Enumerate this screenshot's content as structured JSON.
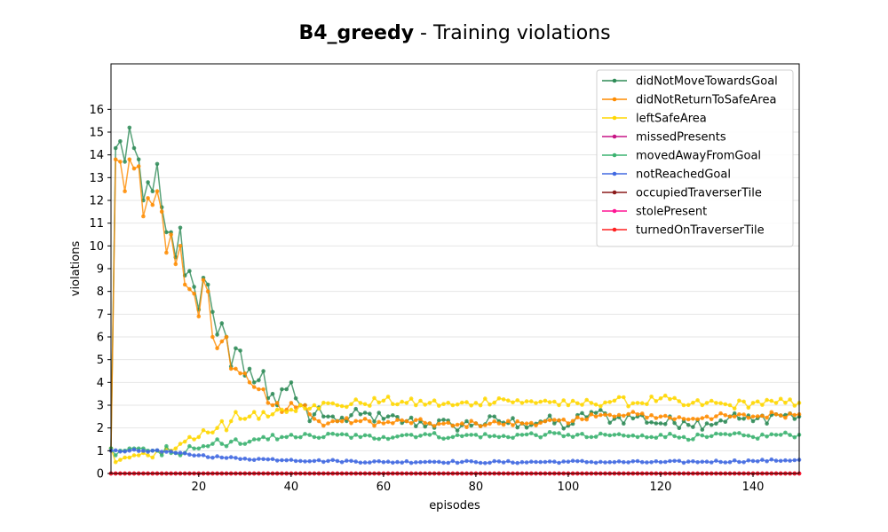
{
  "chart_data": {
    "type": "line",
    "title_bold": "B4_greedy",
    "title_rest": " - Training violations",
    "xlabel": "episodes",
    "ylabel": "violations",
    "xlim": [
      1,
      150
    ],
    "ylim": [
      0,
      18
    ],
    "xticks": [
      20,
      40,
      60,
      80,
      100,
      120,
      140
    ],
    "yticks": [
      0,
      1,
      2,
      3,
      4,
      5,
      6,
      7,
      8,
      9,
      10,
      11,
      12,
      13,
      14,
      15,
      16
    ],
    "grid": "horizontal",
    "legend_position": "top-right",
    "series": [
      {
        "name": "didNotMoveTowardsGoal",
        "color": "#2e8b57",
        "anchors": [
          [
            1,
            1.1
          ],
          [
            2,
            14.3
          ],
          [
            3,
            14.6
          ],
          [
            4,
            13.7
          ],
          [
            5,
            15.2
          ],
          [
            6,
            14.3
          ],
          [
            7,
            13.8
          ],
          [
            8,
            12.0
          ],
          [
            9,
            12.8
          ],
          [
            10,
            12.4
          ],
          [
            11,
            13.6
          ],
          [
            12,
            11.7
          ],
          [
            13,
            10.6
          ],
          [
            14,
            10.6
          ],
          [
            15,
            9.5
          ],
          [
            16,
            10.8
          ],
          [
            17,
            8.7
          ],
          [
            18,
            8.9
          ],
          [
            19,
            8.2
          ],
          [
            20,
            7.2
          ],
          [
            21,
            8.6
          ],
          [
            22,
            8.3
          ],
          [
            23,
            7.1
          ],
          [
            24,
            6.1
          ],
          [
            25,
            6.6
          ],
          [
            26,
            6.0
          ],
          [
            27,
            4.7
          ],
          [
            28,
            5.5
          ],
          [
            29,
            5.4
          ],
          [
            30,
            4.3
          ],
          [
            31,
            4.6
          ],
          [
            32,
            4.0
          ],
          [
            33,
            4.1
          ],
          [
            34,
            4.5
          ],
          [
            35,
            3.3
          ],
          [
            36,
            3.5
          ],
          [
            37,
            3.0
          ],
          [
            38,
            3.7
          ],
          [
            39,
            3.7
          ],
          [
            40,
            4.0
          ],
          [
            41,
            3.3
          ],
          [
            42,
            3.0
          ],
          [
            43,
            3.0
          ],
          [
            44,
            2.3
          ],
          [
            45,
            2.6
          ],
          [
            46,
            2.9
          ],
          [
            47,
            2.5
          ],
          [
            48,
            2.5
          ],
          [
            49,
            2.5
          ],
          [
            50,
            2.3
          ],
          [
            55,
            2.6
          ],
          [
            60,
            2.4
          ],
          [
            65,
            2.3
          ],
          [
            70,
            2.2
          ],
          [
            75,
            2.1
          ],
          [
            80,
            2.2
          ],
          [
            85,
            2.3
          ],
          [
            90,
            2.2
          ],
          [
            95,
            2.3
          ],
          [
            100,
            2.1
          ],
          [
            105,
            2.7
          ],
          [
            110,
            2.4
          ],
          [
            115,
            2.5
          ],
          [
            120,
            2.2
          ],
          [
            125,
            2.3
          ],
          [
            130,
            2.2
          ],
          [
            135,
            2.5
          ],
          [
            140,
            2.3
          ],
          [
            145,
            2.6
          ],
          [
            150,
            2.5
          ]
        ],
        "noise": 0.3
      },
      {
        "name": "didNotReturnToSafeArea",
        "color": "#ff8c00",
        "anchors": [
          [
            1,
            1.0
          ],
          [
            2,
            13.8
          ],
          [
            3,
            13.7
          ],
          [
            4,
            12.4
          ],
          [
            5,
            13.8
          ],
          [
            6,
            13.4
          ],
          [
            7,
            13.5
          ],
          [
            8,
            11.3
          ],
          [
            9,
            12.1
          ],
          [
            10,
            11.8
          ],
          [
            11,
            12.4
          ],
          [
            12,
            11.5
          ],
          [
            13,
            9.7
          ],
          [
            14,
            10.5
          ],
          [
            15,
            9.2
          ],
          [
            16,
            10.0
          ],
          [
            17,
            8.3
          ],
          [
            18,
            8.1
          ],
          [
            19,
            7.9
          ],
          [
            20,
            6.9
          ],
          [
            21,
            8.5
          ],
          [
            22,
            8.0
          ],
          [
            23,
            6.0
          ],
          [
            24,
            5.5
          ],
          [
            25,
            5.8
          ],
          [
            26,
            6.0
          ],
          [
            27,
            4.6
          ],
          [
            28,
            4.6
          ],
          [
            29,
            4.4
          ],
          [
            30,
            4.4
          ],
          [
            31,
            4.0
          ],
          [
            32,
            3.8
          ],
          [
            33,
            3.7
          ],
          [
            34,
            3.7
          ],
          [
            35,
            3.1
          ],
          [
            36,
            3.0
          ],
          [
            37,
            3.1
          ],
          [
            38,
            2.7
          ],
          [
            39,
            2.8
          ],
          [
            40,
            3.1
          ],
          [
            41,
            2.9
          ],
          [
            42,
            3.0
          ],
          [
            43,
            3.0
          ],
          [
            44,
            2.6
          ],
          [
            45,
            2.4
          ],
          [
            46,
            2.3
          ],
          [
            47,
            2.1
          ],
          [
            48,
            2.2
          ],
          [
            49,
            2.3
          ],
          [
            50,
            2.3
          ],
          [
            55,
            2.3
          ],
          [
            60,
            2.2
          ],
          [
            65,
            2.3
          ],
          [
            70,
            2.2
          ],
          [
            75,
            2.1
          ],
          [
            80,
            2.2
          ],
          [
            85,
            2.2
          ],
          [
            90,
            2.2
          ],
          [
            95,
            2.3
          ],
          [
            100,
            2.2
          ],
          [
            105,
            2.6
          ],
          [
            110,
            2.5
          ],
          [
            115,
            2.6
          ],
          [
            120,
            2.5
          ],
          [
            125,
            2.4
          ],
          [
            130,
            2.5
          ],
          [
            135,
            2.5
          ],
          [
            140,
            2.5
          ],
          [
            145,
            2.6
          ],
          [
            150,
            2.6
          ]
        ],
        "noise": 0.15
      },
      {
        "name": "leftSafeArea",
        "color": "#ffd700",
        "anchors": [
          [
            1,
            1.1
          ],
          [
            2,
            0.5
          ],
          [
            3,
            0.6
          ],
          [
            4,
            0.7
          ],
          [
            5,
            0.7
          ],
          [
            6,
            0.8
          ],
          [
            7,
            0.8
          ],
          [
            8,
            0.9
          ],
          [
            9,
            0.8
          ],
          [
            10,
            0.7
          ],
          [
            11,
            1.0
          ],
          [
            12,
            0.9
          ],
          [
            13,
            1.1
          ],
          [
            14,
            1.0
          ],
          [
            15,
            1.1
          ],
          [
            16,
            1.3
          ],
          [
            17,
            1.4
          ],
          [
            18,
            1.6
          ],
          [
            19,
            1.5
          ],
          [
            20,
            1.6
          ],
          [
            21,
            1.9
          ],
          [
            22,
            1.8
          ],
          [
            23,
            1.8
          ],
          [
            24,
            2.0
          ],
          [
            25,
            2.3
          ],
          [
            26,
            1.9
          ],
          [
            27,
            2.3
          ],
          [
            28,
            2.7
          ],
          [
            29,
            2.4
          ],
          [
            30,
            2.4
          ],
          [
            31,
            2.5
          ],
          [
            32,
            2.7
          ],
          [
            33,
            2.4
          ],
          [
            34,
            2.7
          ],
          [
            35,
            2.5
          ],
          [
            36,
            2.6
          ],
          [
            37,
            2.8
          ],
          [
            38,
            2.8
          ],
          [
            39,
            2.7
          ],
          [
            40,
            2.8
          ],
          [
            42,
            3.0
          ],
          [
            45,
            3.0
          ],
          [
            50,
            3.0
          ],
          [
            55,
            3.1
          ],
          [
            60,
            3.2
          ],
          [
            65,
            3.1
          ],
          [
            70,
            3.1
          ],
          [
            75,
            3.0
          ],
          [
            80,
            3.1
          ],
          [
            85,
            3.3
          ],
          [
            90,
            3.1
          ],
          [
            95,
            3.2
          ],
          [
            100,
            3.0
          ],
          [
            105,
            3.1
          ],
          [
            110,
            3.2
          ],
          [
            115,
            3.1
          ],
          [
            120,
            3.3
          ],
          [
            125,
            3.0
          ],
          [
            130,
            3.1
          ],
          [
            135,
            3.0
          ],
          [
            140,
            3.1
          ],
          [
            145,
            3.1
          ],
          [
            150,
            3.1
          ]
        ],
        "noise": 0.2
      },
      {
        "name": "missedPresents",
        "color": "#c71585",
        "anchors": [
          [
            1,
            0.0
          ],
          [
            150,
            0.0
          ]
        ],
        "noise": 0
      },
      {
        "name": "movedAwayFromGoal",
        "color": "#3cb371",
        "anchors": [
          [
            1,
            1.1
          ],
          [
            2,
            0.8
          ],
          [
            3,
            1.0
          ],
          [
            4,
            1.0
          ],
          [
            5,
            1.1
          ],
          [
            6,
            1.1
          ],
          [
            7,
            1.1
          ],
          [
            8,
            1.1
          ],
          [
            9,
            1.0
          ],
          [
            10,
            1.0
          ],
          [
            11,
            1.0
          ],
          [
            12,
            0.8
          ],
          [
            13,
            1.2
          ],
          [
            14,
            0.9
          ],
          [
            15,
            0.9
          ],
          [
            16,
            0.8
          ],
          [
            17,
            0.9
          ],
          [
            18,
            1.2
          ],
          [
            19,
            1.1
          ],
          [
            20,
            1.1
          ],
          [
            21,
            1.2
          ],
          [
            22,
            1.2
          ],
          [
            23,
            1.3
          ],
          [
            24,
            1.5
          ],
          [
            25,
            1.3
          ],
          [
            26,
            1.2
          ],
          [
            27,
            1.4
          ],
          [
            28,
            1.5
          ],
          [
            29,
            1.3
          ],
          [
            30,
            1.3
          ],
          [
            31,
            1.4
          ],
          [
            32,
            1.5
          ],
          [
            33,
            1.5
          ],
          [
            34,
            1.6
          ],
          [
            35,
            1.5
          ],
          [
            36,
            1.7
          ],
          [
            37,
            1.5
          ],
          [
            38,
            1.6
          ],
          [
            39,
            1.6
          ],
          [
            40,
            1.7
          ],
          [
            45,
            1.6
          ],
          [
            50,
            1.7
          ],
          [
            55,
            1.6
          ],
          [
            60,
            1.6
          ],
          [
            65,
            1.7
          ],
          [
            70,
            1.7
          ],
          [
            75,
            1.6
          ],
          [
            80,
            1.7
          ],
          [
            85,
            1.6
          ],
          [
            90,
            1.7
          ],
          [
            95,
            1.7
          ],
          [
            100,
            1.7
          ],
          [
            105,
            1.6
          ],
          [
            110,
            1.7
          ],
          [
            115,
            1.6
          ],
          [
            120,
            1.7
          ],
          [
            125,
            1.6
          ],
          [
            130,
            1.6
          ],
          [
            135,
            1.7
          ],
          [
            140,
            1.6
          ],
          [
            145,
            1.7
          ],
          [
            150,
            1.7
          ]
        ],
        "noise": 0.12
      },
      {
        "name": "notReachedGoal",
        "color": "#4169e1",
        "anchors": [
          [
            1,
            1.0
          ],
          [
            5,
            1.0
          ],
          [
            10,
            1.0
          ],
          [
            15,
            0.9
          ],
          [
            20,
            0.8
          ],
          [
            25,
            0.7
          ],
          [
            30,
            0.65
          ],
          [
            35,
            0.62
          ],
          [
            40,
            0.6
          ],
          [
            45,
            0.55
          ],
          [
            50,
            0.55
          ],
          [
            60,
            0.5
          ],
          [
            70,
            0.52
          ],
          [
            80,
            0.5
          ],
          [
            90,
            0.5
          ],
          [
            100,
            0.52
          ],
          [
            110,
            0.5
          ],
          [
            120,
            0.5
          ],
          [
            130,
            0.52
          ],
          [
            140,
            0.55
          ],
          [
            150,
            0.6
          ]
        ],
        "noise": 0.05
      },
      {
        "name": "occupiedTraverserTile",
        "color": "#8b1a1a",
        "anchors": [
          [
            1,
            0.0
          ],
          [
            150,
            0.0
          ]
        ],
        "noise": 0
      },
      {
        "name": "stolePresent",
        "color": "#ff1493",
        "anchors": [
          [
            1,
            0.0
          ],
          [
            150,
            0.0
          ]
        ],
        "noise": 0
      },
      {
        "name": "turnedOnTraverserTile",
        "color": "#ff2020",
        "anchors": [
          [
            1,
            0.0
          ],
          [
            150,
            0.0
          ]
        ],
        "noise": 0
      }
    ]
  }
}
